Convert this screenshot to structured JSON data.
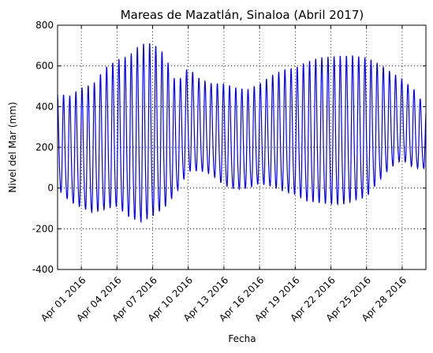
{
  "chart_data": {
    "type": "line",
    "title": "Mareas de Mazatlán, Sinaloa (Abril 2017)",
    "xlabel": "Fecha",
    "ylabel": "Nivel del Mar (mm)",
    "xlim": [
      "2016-03-30",
      "2016-04-30"
    ],
    "ylim": [
      -400,
      800
    ],
    "x_ticks": [
      "Apr 01 2016",
      "Apr 04 2016",
      "Apr 07 2016",
      "Apr 10 2016",
      "Apr 13 2016",
      "Apr 16 2016",
      "Apr 19 2016",
      "Apr 22 2016",
      "Apr 25 2016",
      "Apr 28 2016"
    ],
    "y_ticks": [
      -400,
      -200,
      0,
      200,
      400,
      600,
      800
    ],
    "grid": true,
    "series": [
      {
        "color": "#0000ff",
        "x": [
          "2016-03-30",
          "2016-03-31",
          "2016-04-01",
          "2016-04-02",
          "2016-04-03",
          "2016-04-04",
          "2016-04-05",
          "2016-04-06",
          "2016-04-07",
          "2016-04-08",
          "2016-04-09",
          "2016-04-10",
          "2016-04-11",
          "2016-04-12",
          "2016-04-13",
          "2016-04-14",
          "2016-04-15",
          "2016-04-16",
          "2016-04-17",
          "2016-04-18",
          "2016-04-19",
          "2016-04-20",
          "2016-04-21",
          "2016-04-22",
          "2016-04-23",
          "2016-04-24",
          "2016-04-25",
          "2016-04-26",
          "2016-04-27",
          "2016-04-28",
          "2016-04-29",
          "2016-04-30"
        ],
        "high_tide": [
          470,
          460,
          500,
          520,
          600,
          640,
          660,
          720,
          725,
          670,
          520,
          600,
          540,
          520,
          520,
          500,
          490,
          520,
          560,
          590,
          600,
          630,
          650,
          655,
          660,
          660,
          650,
          620,
          580,
          540,
          490,
          400
        ],
        "low_tide": [
          -60,
          -130,
          -170,
          -200,
          -190,
          -180,
          -240,
          -275,
          -245,
          -190,
          -90,
          20,
          30,
          10,
          -50,
          -70,
          -60,
          -40,
          -60,
          -90,
          -110,
          -150,
          -160,
          -170,
          -170,
          -150,
          -130,
          -40,
          40,
          90,
          50,
          60
        ]
      }
    ]
  }
}
